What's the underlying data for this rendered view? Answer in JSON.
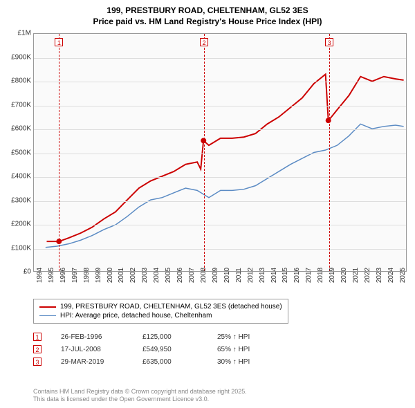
{
  "title": {
    "line1": "199, PRESTBURY ROAD, CHELTENHAM, GL52 3ES",
    "line2": "Price paid vs. HM Land Registry's House Price Index (HPI)",
    "fontsize": 12,
    "fontweight": "bold",
    "color": "#000000"
  },
  "chart": {
    "type": "line",
    "background_color": "#fafafa",
    "border_color": "#999999",
    "grid_color": "#dddddd",
    "xlim": [
      1994,
      2025.9
    ],
    "ylim": [
      0,
      1000000
    ],
    "ytick_step": 100000,
    "yticks": [
      {
        "v": 0,
        "label": "£0"
      },
      {
        "v": 100000,
        "label": "£100K"
      },
      {
        "v": 200000,
        "label": "£200K"
      },
      {
        "v": 300000,
        "label": "£300K"
      },
      {
        "v": 400000,
        "label": "£400K"
      },
      {
        "v": 500000,
        "label": "£500K"
      },
      {
        "v": 600000,
        "label": "£600K"
      },
      {
        "v": 700000,
        "label": "£700K"
      },
      {
        "v": 800000,
        "label": "£800K"
      },
      {
        "v": 900000,
        "label": "£900K"
      },
      {
        "v": 1000000,
        "label": "£1M"
      }
    ],
    "xticks": [
      1994,
      1995,
      1996,
      1997,
      1998,
      1999,
      2000,
      2001,
      2002,
      2003,
      2004,
      2005,
      2006,
      2007,
      2008,
      2009,
      2010,
      2011,
      2012,
      2013,
      2014,
      2015,
      2016,
      2017,
      2018,
      2019,
      2020,
      2021,
      2022,
      2023,
      2024,
      2025
    ],
    "label_fontsize": 10,
    "series": [
      {
        "name": "199, PRESTBURY ROAD, CHELTENHAM, GL52 3ES (detached house)",
        "color": "#cc0000",
        "line_width": 2,
        "points": [
          [
            1995.1,
            125000
          ],
          [
            1996.15,
            125000
          ],
          [
            1997,
            140000
          ],
          [
            1998,
            160000
          ],
          [
            1999,
            185000
          ],
          [
            2000,
            220000
          ],
          [
            2001,
            250000
          ],
          [
            2002,
            300000
          ],
          [
            2003,
            350000
          ],
          [
            2004,
            380000
          ],
          [
            2005,
            400000
          ],
          [
            2006,
            420000
          ],
          [
            2007,
            450000
          ],
          [
            2008,
            460000
          ],
          [
            2008.3,
            430000
          ],
          [
            2008.54,
            549950
          ],
          [
            2009,
            530000
          ],
          [
            2010,
            560000
          ],
          [
            2011,
            560000
          ],
          [
            2012,
            565000
          ],
          [
            2013,
            580000
          ],
          [
            2014,
            620000
          ],
          [
            2015,
            650000
          ],
          [
            2016,
            690000
          ],
          [
            2017,
            730000
          ],
          [
            2018,
            790000
          ],
          [
            2019,
            830000
          ],
          [
            2019.24,
            635000
          ],
          [
            2019.5,
            650000
          ],
          [
            2020,
            680000
          ],
          [
            2021,
            740000
          ],
          [
            2022,
            820000
          ],
          [
            2023,
            800000
          ],
          [
            2024,
            820000
          ],
          [
            2025,
            810000
          ],
          [
            2025.7,
            805000
          ]
        ]
      },
      {
        "name": "HPI: Average price, detached house, Cheltenham",
        "color": "#5b8bc4",
        "line_width": 1.5,
        "points": [
          [
            1995,
            100000
          ],
          [
            1996,
            105000
          ],
          [
            1997,
            115000
          ],
          [
            1998,
            130000
          ],
          [
            1999,
            150000
          ],
          [
            2000,
            175000
          ],
          [
            2001,
            195000
          ],
          [
            2002,
            230000
          ],
          [
            2003,
            270000
          ],
          [
            2004,
            300000
          ],
          [
            2005,
            310000
          ],
          [
            2006,
            330000
          ],
          [
            2007,
            350000
          ],
          [
            2008,
            340000
          ],
          [
            2009,
            310000
          ],
          [
            2010,
            340000
          ],
          [
            2011,
            340000
          ],
          [
            2012,
            345000
          ],
          [
            2013,
            360000
          ],
          [
            2014,
            390000
          ],
          [
            2015,
            420000
          ],
          [
            2016,
            450000
          ],
          [
            2017,
            475000
          ],
          [
            2018,
            500000
          ],
          [
            2019,
            510000
          ],
          [
            2020,
            530000
          ],
          [
            2021,
            570000
          ],
          [
            2022,
            620000
          ],
          [
            2023,
            600000
          ],
          [
            2024,
            610000
          ],
          [
            2025,
            615000
          ],
          [
            2025.7,
            610000
          ]
        ]
      }
    ],
    "markers": [
      {
        "n": "1",
        "x": 1996.15,
        "y": 125000,
        "box_top": true
      },
      {
        "n": "2",
        "x": 2008.54,
        "y": 549950,
        "box_top": true
      },
      {
        "n": "3",
        "x": 2019.24,
        "y": 635000,
        "box_top": true
      }
    ],
    "marker_color": "#cc0000",
    "marker_dot_radius": 4
  },
  "legend": {
    "border_color": "#999999",
    "fontsize": 10,
    "items": [
      {
        "label": "199, PRESTBURY ROAD, CHELTENHAM, GL52 3ES (detached house)",
        "color": "#cc0000",
        "width": 2
      },
      {
        "label": "HPI: Average price, detached house, Cheltenham",
        "color": "#5b8bc4",
        "width": 1.5
      }
    ]
  },
  "events": [
    {
      "n": "1",
      "date": "26-FEB-1996",
      "price": "£125,000",
      "delta": "25% ↑ HPI"
    },
    {
      "n": "2",
      "date": "17-JUL-2008",
      "price": "£549,950",
      "delta": "65% ↑ HPI"
    },
    {
      "n": "3",
      "date": "29-MAR-2019",
      "price": "£635,000",
      "delta": "30% ↑ HPI"
    }
  ],
  "footer": {
    "line1": "Contains HM Land Registry data © Crown copyright and database right 2025.",
    "line2": "This data is licensed under the Open Government Licence v3.0.",
    "color": "#888888",
    "fontsize": 9
  }
}
